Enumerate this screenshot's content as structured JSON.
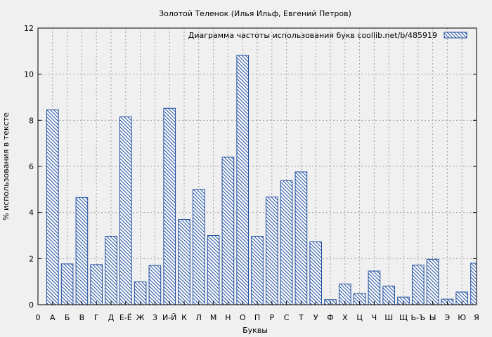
{
  "chart_data": {
    "type": "bar",
    "title": "Золотой Теленок (Илья Ильф, Евгений Петров)",
    "xlabel": "Буквы",
    "ylabel": "% использования в тексте",
    "ylim": [
      0,
      12
    ],
    "yticks": [
      0,
      2,
      4,
      6,
      8,
      10,
      12
    ],
    "grid": true,
    "legend_position": "top-right",
    "bar_color": "#1f4fa0",
    "background": "#f0f0f0",
    "x_tick_labels": [
      "0",
      "А",
      "Б",
      "В",
      "Г",
      "Д",
      "Е-Ё",
      "Ж",
      "З",
      "И-Й",
      "К",
      "Л",
      "М",
      "Н",
      "О",
      "П",
      "Р",
      "С",
      "Т",
      "У",
      "Ф",
      "Х",
      "Ц",
      "Ч",
      "Ш",
      "Щ",
      "Ь-Ъ",
      "Ы",
      "Э",
      "Ю",
      "Я"
    ],
    "categories": [
      "А",
      "Б",
      "В",
      "Г",
      "Д",
      "Е-Ё",
      "Ж",
      "З",
      "И-Й",
      "К",
      "Л",
      "М",
      "Н",
      "О",
      "П",
      "Р",
      "С",
      "Т",
      "У",
      "Ф",
      "Х",
      "Ц",
      "Ч",
      "Ш",
      "Щ",
      "Ь-Ъ",
      "Ы",
      "Э",
      "Ю",
      "Я"
    ],
    "series": [
      {
        "name": "Диаграмма частоты использования букв coollib.net/b/485919",
        "values": [
          8.45,
          1.77,
          4.65,
          1.74,
          2.97,
          8.15,
          0.99,
          1.7,
          8.52,
          3.7,
          5.0,
          3.0,
          6.4,
          10.82,
          2.97,
          4.67,
          5.38,
          5.76,
          2.73,
          0.22,
          0.9,
          0.48,
          1.46,
          0.81,
          0.33,
          1.72,
          1.97,
          0.24,
          0.55,
          1.8
        ]
      }
    ]
  }
}
